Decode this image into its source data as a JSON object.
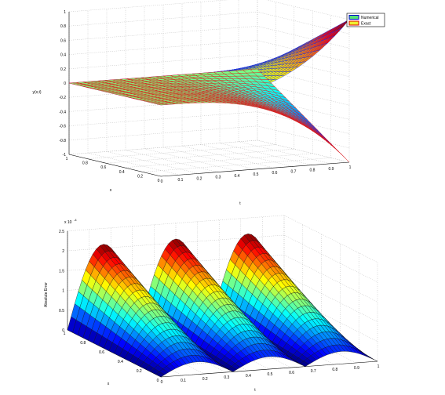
{
  "chart_data": [
    {
      "type": "surface",
      "legend": {
        "placement": "top-right",
        "entries": [
          "Numerical",
          "Exact"
        ]
      },
      "series": [
        {
          "name": "Numerical",
          "colormap": "jet"
        },
        {
          "name": "Exact",
          "colormap": "jet"
        }
      ],
      "x_ticks": [
        "0",
        "0.2",
        "0.4",
        "0.6",
        "0.8",
        "1"
      ],
      "t_ticks": [
        "0",
        "0.1",
        "0.2",
        "0.3",
        "0.4",
        "0.5",
        "0.6",
        "0.7",
        "0.8",
        "0.9",
        "1"
      ],
      "z_ticks": [
        "1",
        "0.8",
        "0.6",
        "0.4",
        "0.2",
        "0",
        "-0.2",
        "-0.4",
        "-0.6",
        "-0.8",
        "-1"
      ],
      "xlabel": "x",
      "tlabel": "t",
      "zlabel": "y(x,t)",
      "xlim": [
        0,
        1
      ],
      "tlim": [
        0,
        1
      ],
      "zlim": [
        -1,
        1
      ],
      "grid": true
    },
    {
      "type": "surface",
      "x_ticks": [
        "0",
        "0.2",
        "0.4",
        "0.6",
        "0.8",
        "1"
      ],
      "t_ticks": [
        "0",
        "0.1",
        "0.2",
        "0.3",
        "0.4",
        "0.5",
        "0.6",
        "0.7",
        "0.8",
        "0.9",
        "1"
      ],
      "z_ticks": [
        "0",
        "0.5",
        "1",
        "1.5",
        "2",
        "2.5"
      ],
      "z_exponent": "x 10^-4",
      "z_multiplier": "x 10",
      "z_power": "-4",
      "xlabel": "x",
      "tlabel": "t",
      "zlabel": "Absolute Error",
      "xlim": [
        0,
        1
      ],
      "tlim": [
        0,
        1
      ],
      "zlim": [
        0,
        2.5
      ],
      "peaks_t": [
        0.17,
        0.5,
        0.83
      ],
      "peak_value": 2.1,
      "colormap": "jet",
      "grid": true
    }
  ]
}
